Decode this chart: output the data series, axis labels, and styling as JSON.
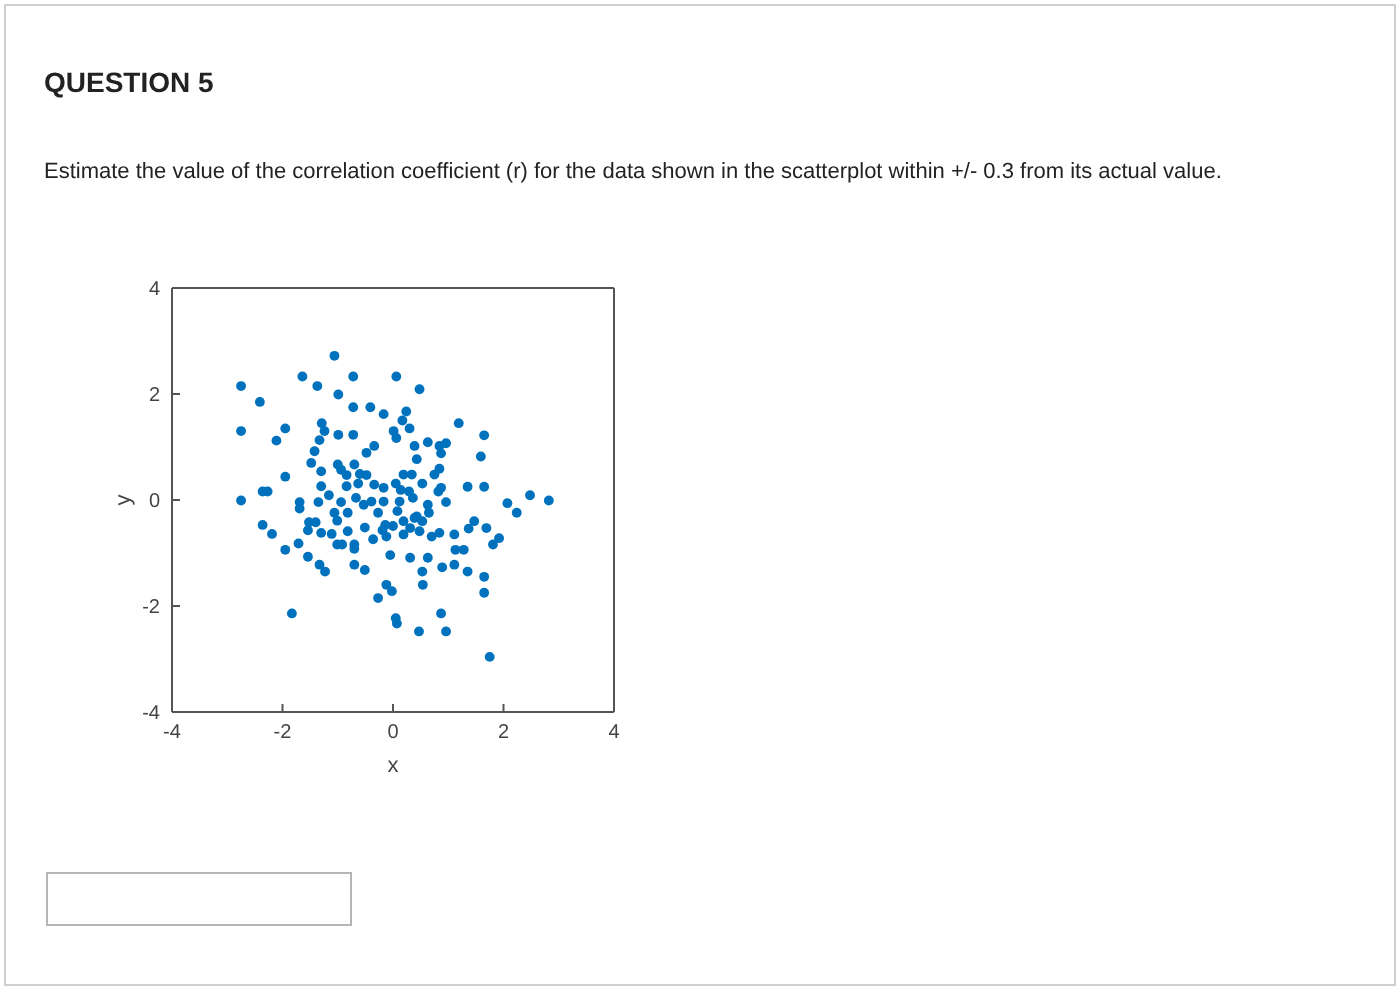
{
  "chart_data": {
    "type": "scatter",
    "title": "QUESTION 5",
    "subtitle": "Estimate the value of the correlation coefficient (r) for the data shown in the scatterplot within +/- 0.3 from its actual value.",
    "xlabel": "x",
    "ylabel": "y",
    "color": "#0072bd",
    "marker": "circle",
    "x": [
      -1.06,
      -2.75,
      -1.64,
      -0.72,
      0.06,
      0.48,
      -1.37,
      -2.41,
      -0.99,
      -2.75,
      -1.95,
      -2.11,
      -1.29,
      -1.24,
      -1.33,
      -0.72,
      -0.41,
      -0.17,
      0.24,
      0.17,
      0.3,
      0.01,
      0.06,
      -0.34,
      -0.72,
      -0.99,
      1.19,
      1.65,
      0.39,
      0.63,
      0.84,
      0.96,
      0.87,
      1.59,
      -1.42,
      -1.48,
      -1.95,
      -2.36,
      -2.27,
      -2.75,
      -1.69,
      -1.69,
      -2.36,
      -2.19,
      -1.95,
      -1.71,
      -1.54,
      -1.33,
      -1.23,
      -1.83,
      -1.0,
      -0.94,
      -0.84,
      -0.7,
      -0.6,
      -0.48,
      -0.63,
      -1.16,
      -1.35,
      -0.94,
      -1.06,
      -1.4,
      -1.3,
      -1.01,
      -1.01,
      -0.82,
      -0.7,
      -0.7,
      -0.51,
      -0.7,
      -0.27,
      -0.39,
      -0.17,
      -0.17,
      -0.51,
      -0.36,
      -0.12,
      -0.05,
      -0.12,
      -0.02,
      -0.27,
      0.05,
      0.07,
      0.47,
      0.96,
      0.87,
      1.75,
      0.54,
      0.53,
      0.31,
      0.63,
      0.89,
      1.11,
      1.35,
      1.13,
      1.28,
      1.65,
      1.65,
      1.81,
      1.92,
      1.69,
      1.47,
      1.37,
      1.11,
      2.07,
      2.24,
      2.48,
      2.82,
      1.35,
      1.65,
      0.96,
      0.87,
      0.75,
      0.84,
      0.82,
      0.53,
      0.34,
      0.19,
      0.43,
      0.05,
      0.29,
      0.12,
      0.08,
      0.19,
      0.39,
      0.53,
      0.65,
      0.48,
      0.7,
      0.84,
      0.19,
      0.31,
      0.0,
      -0.14,
      -0.19,
      0.63,
      0.36,
      -0.53,
      -0.82,
      -0.67,
      -0.84,
      -1.52,
      -1.54,
      -1.11,
      -0.92,
      -1.3,
      -1.3,
      -0.34,
      -0.48,
      0.43,
      0.14
    ],
    "values": [
      2.72,
      2.15,
      2.33,
      2.33,
      2.33,
      2.09,
      2.15,
      1.85,
      1.99,
      1.3,
      1.35,
      1.12,
      1.45,
      1.3,
      1.13,
      1.75,
      1.75,
      1.62,
      1.67,
      1.5,
      1.35,
      1.3,
      1.17,
      1.02,
      1.23,
      1.23,
      1.45,
      1.22,
      1.02,
      1.09,
      1.02,
      1.07,
      0.88,
      0.82,
      0.92,
      0.7,
      0.44,
      0.16,
      0.16,
      -0.01,
      -0.04,
      -0.16,
      -0.47,
      -0.64,
      -0.94,
      -0.82,
      -1.07,
      -1.22,
      -1.35,
      -2.14,
      0.67,
      0.57,
      0.47,
      0.67,
      0.49,
      0.47,
      0.31,
      0.09,
      -0.04,
      -0.04,
      -0.24,
      -0.42,
      -0.62,
      -0.39,
      -0.84,
      -0.59,
      -0.84,
      -1.22,
      -1.32,
      -0.92,
      -0.24,
      -0.03,
      -0.03,
      0.23,
      -0.52,
      -0.74,
      -0.69,
      -1.04,
      -1.6,
      -1.72,
      -1.85,
      -2.23,
      -2.33,
      -2.48,
      -2.48,
      -2.14,
      -2.96,
      -1.6,
      -1.35,
      -1.09,
      -1.09,
      -1.27,
      -1.22,
      -1.35,
      -0.94,
      -0.94,
      -1.45,
      -1.75,
      -0.84,
      -0.72,
      -0.53,
      -0.4,
      -0.54,
      -0.65,
      -0.06,
      -0.24,
      0.09,
      -0.01,
      0.25,
      0.25,
      -0.04,
      0.23,
      0.48,
      0.59,
      0.16,
      0.31,
      0.48,
      0.48,
      0.77,
      0.31,
      0.16,
      -0.03,
      -0.21,
      -0.4,
      -0.34,
      -0.4,
      -0.24,
      -0.59,
      -0.69,
      -0.62,
      -0.65,
      -0.53,
      -0.49,
      -0.47,
      -0.57,
      -0.09,
      0.04,
      -0.09,
      -0.24,
      0.04,
      0.26,
      -0.42,
      -0.57,
      -0.64,
      -0.84,
      0.54,
      0.26,
      0.29,
      0.89,
      -0.31,
      0.19
    ],
    "xlim": [
      -4,
      4
    ],
    "ylim": [
      -4,
      4
    ],
    "xticks": [
      -4,
      -2,
      0,
      2,
      4
    ],
    "yticks": [
      -4,
      -2,
      0,
      2,
      4
    ]
  }
}
